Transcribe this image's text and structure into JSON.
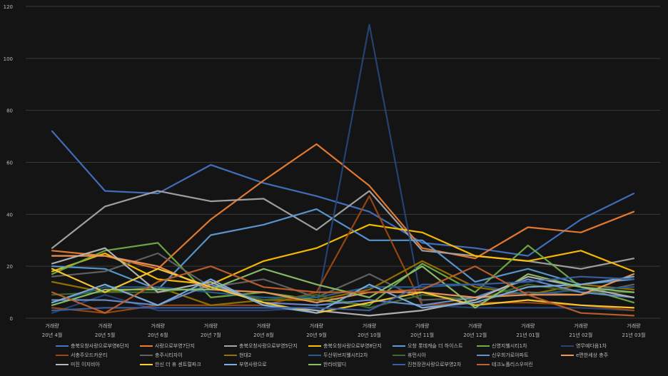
{
  "chart_data": {
    "type": "line",
    "title": "",
    "xlabel": "",
    "ylabel": "",
    "ylim": [
      0,
      120
    ],
    "yticks": [
      0,
      20,
      40,
      60,
      80,
      100,
      120
    ],
    "grid": true,
    "legend": "bottom",
    "x_tick_top": [
      "거래량",
      "거래량",
      "거래량",
      "거래량",
      "거래량",
      "거래량",
      "거래량",
      "거래량",
      "거래량",
      "거래량",
      "거래량",
      "거래량"
    ],
    "categories": [
      "20년 4월",
      "20년 5월",
      "20년 6월",
      "20년 7월",
      "20년 8월",
      "20년 9월",
      "20년 10월",
      "20년 11월",
      "20년 12월",
      "21년 01월",
      "21년 02월",
      "21년 03월"
    ],
    "series": [
      {
        "name": "충북오창사랑으로부영6단지",
        "color": "#4472c4",
        "values": [
          72,
          49,
          48,
          59,
          52,
          47,
          41,
          29,
          27,
          24,
          38,
          48
        ]
      },
      {
        "name": "사랑으로부영7단지",
        "color": "#ed7d31",
        "values": [
          26,
          24,
          19,
          38,
          53,
          67,
          51,
          27,
          23,
          35,
          33,
          41
        ]
      },
      {
        "name": "충북오창사랑으로부영5단지",
        "color": "#a5a5a5",
        "values": [
          27,
          43,
          49,
          45,
          46,
          34,
          49,
          26,
          24,
          22,
          19,
          23
        ]
      },
      {
        "name": "충북오창사랑으로부영8단지",
        "color": "#ffc000",
        "values": [
          18,
          25,
          15,
          13,
          22,
          27,
          36,
          33,
          24,
          22,
          26,
          18
        ]
      },
      {
        "name": "오창 롯데캐슬 더 하이스트",
        "color": "#5b9bd5",
        "values": [
          20,
          19,
          11,
          32,
          36,
          42,
          30,
          30,
          14,
          19,
          13,
          15
        ]
      },
      {
        "name": "신영지웰시티1차",
        "color": "#70ad47",
        "values": [
          17,
          26,
          29,
          8,
          10,
          7,
          5,
          21,
          10,
          28,
          12,
          6
        ]
      },
      {
        "name": "영무예다음1차",
        "color": "#264478",
        "values": [
          2,
          9,
          3,
          3,
          3,
          4,
          113,
          5,
          4,
          4,
          4,
          3
        ]
      },
      {
        "name": "서충주오드카운티",
        "color": "#9e480e",
        "values": [
          4,
          2,
          5,
          5,
          5,
          10,
          47,
          5,
          6,
          6,
          5,
          3
        ]
      },
      {
        "name": "충주시티자이",
        "color": "#636363",
        "values": [
          16,
          18,
          25,
          12,
          15,
          8,
          17,
          7,
          8,
          10,
          9,
          13
        ]
      },
      {
        "name": "현대2",
        "color": "#997300",
        "values": [
          14,
          10,
          12,
          5,
          7,
          7,
          11,
          22,
          12,
          9,
          13,
          11
        ]
      },
      {
        "name": "두산위브지웰시티2차",
        "color": "#255e91",
        "values": [
          6,
          12,
          12,
          10,
          8,
          8,
          12,
          12,
          13,
          9,
          11,
          12
        ]
      },
      {
        "name": "휴먼시아",
        "color": "#43682b",
        "values": [
          9,
          10,
          10,
          12,
          7,
          9,
          4,
          9,
          7,
          13,
          10,
          10
        ]
      },
      {
        "name": "신우희가로아파트",
        "color": "#698ed0",
        "values": [
          7,
          7,
          5,
          13,
          6,
          5,
          7,
          5,
          8,
          15,
          10,
          8
        ]
      },
      {
        "name": "e편한세상 충주",
        "color": "#f1975a",
        "values": [
          24,
          24,
          20,
          11,
          10,
          6,
          10,
          10,
          8,
          9,
          9,
          17
        ]
      },
      {
        "name": "미진 이지비아",
        "color": "#b7b7b7",
        "values": [
          21,
          27,
          10,
          14,
          5,
          3,
          1,
          3,
          7,
          16,
          12,
          8
        ]
      },
      {
        "name": "한신 더 휴 센트럴파크",
        "color": "#ffcd33",
        "values": [
          19,
          10,
          19,
          12,
          6,
          2,
          6,
          10,
          5,
          7,
          5,
          4
        ]
      },
      {
        "name": "부영사랑으로",
        "color": "#7cafdd",
        "values": [
          6,
          13,
          5,
          15,
          5,
          2,
          13,
          4,
          6,
          12,
          13,
          16
        ]
      },
      {
        "name": "한라비발디",
        "color": "#8cc168",
        "values": [
          5,
          11,
          11,
          11,
          19,
          13,
          8,
          20,
          4,
          17,
          12,
          10
        ]
      },
      {
        "name": "진천장관사랑으로부영2차",
        "color": "#3a5fa0",
        "values": [
          3,
          4,
          4,
          4,
          4,
          4,
          3,
          13,
          13,
          14,
          16,
          15
        ]
      },
      {
        "name": "테크노폴리스우미린",
        "color": "#c0602a",
        "values": [
          10,
          2,
          14,
          20,
          12,
          10,
          10,
          11,
          20,
          9,
          2,
          1
        ]
      }
    ]
  }
}
